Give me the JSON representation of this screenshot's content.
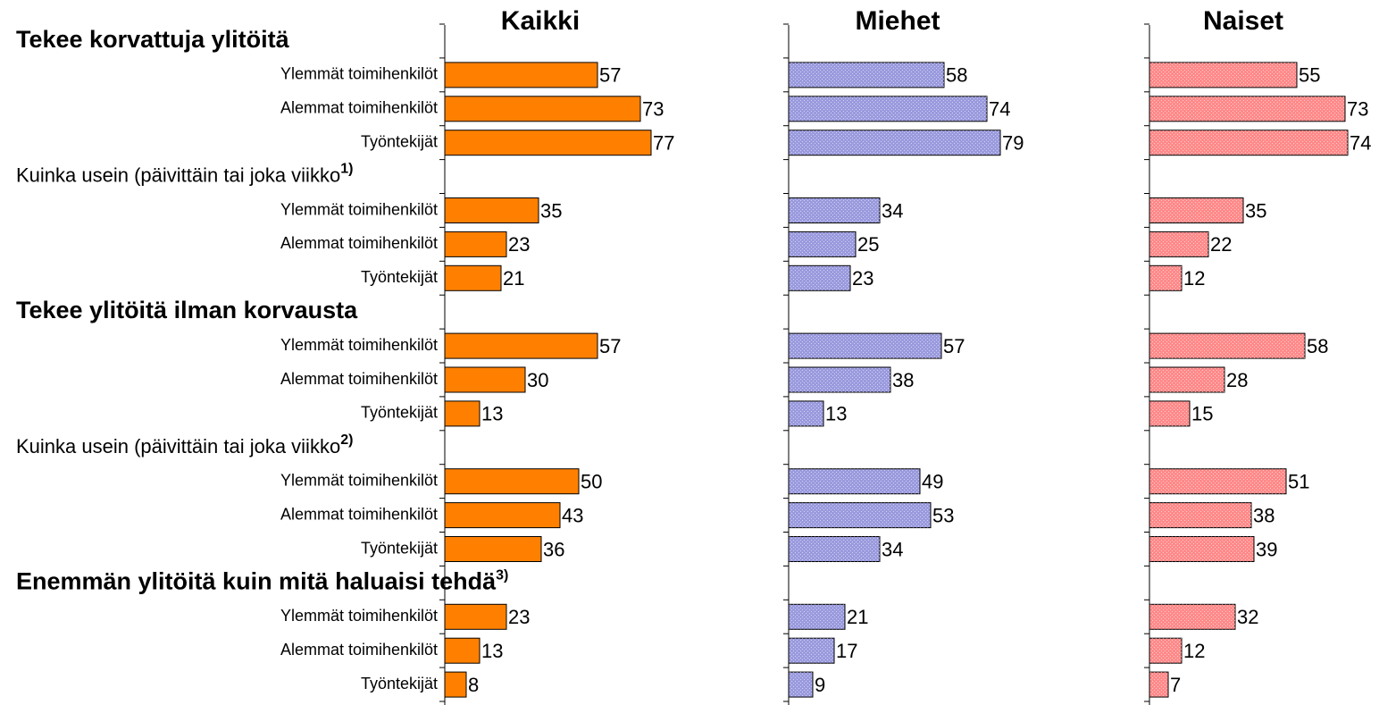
{
  "chart_data": {
    "type": "bar",
    "orientation": "horizontal",
    "groups": [
      {
        "title": "Tekee korvattuja ylitöitä",
        "bold": true
      },
      {
        "title": "Kuinka usein (päivittäin tai joka viikko",
        "note": "1)",
        "bold": false
      },
      {
        "title": "Tekee ylitöitä ilman korvausta",
        "bold": true
      },
      {
        "title": "Kuinka usein (päivittäin tai joka viikko",
        "note": "2)",
        "bold": false
      },
      {
        "title": "Enemmän ylitöitä kuin mitä haluaisi tehdä",
        "note": "3)",
        "bold": true
      }
    ],
    "categories": [
      "Ylemmät toimihenkilöt",
      "Alemmat toimihenkilöt",
      "Työntekijät",
      "Ylemmät toimihenkilöt",
      "Alemmat toimihenkilöt",
      "Työntekijät",
      "Ylemmät toimihenkilöt",
      "Alemmat toimihenkilöt",
      "Työntekijät",
      "Ylemmät toimihenkilöt",
      "Alemmat toimihenkilöt",
      "Työntekijät",
      "Ylemmät toimihenkilöt",
      "Alemmat toimihenkilöt",
      "Työntekijät"
    ],
    "series": [
      {
        "name": "Kaikki",
        "color": "#ff8000",
        "values": [
          57,
          73,
          77,
          35,
          23,
          21,
          57,
          30,
          13,
          50,
          43,
          36,
          23,
          13,
          8
        ]
      },
      {
        "name": "Miehet",
        "color": "#9a9ade",
        "values": [
          58,
          74,
          79,
          34,
          25,
          23,
          57,
          38,
          13,
          49,
          53,
          34,
          21,
          17,
          9
        ]
      },
      {
        "name": "Naiset",
        "color": "#ff8a8a",
        "values": [
          55,
          73,
          74,
          35,
          22,
          12,
          58,
          28,
          15,
          51,
          38,
          39,
          32,
          12,
          7
        ]
      }
    ],
    "xlim": [
      0,
      100
    ]
  }
}
